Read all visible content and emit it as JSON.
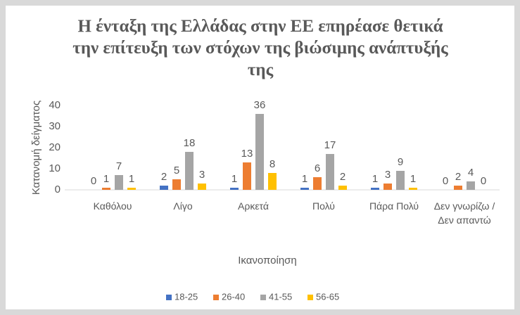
{
  "chart_data": {
    "type": "bar",
    "title": "Η ένταξη της Ελλάδας στην ΕΕ επηρέασε θετικά την επίτευξη των στόχων της βιώσιμης ανάπτυξής της",
    "x_label": "Ικανοποίηση",
    "y_label": "Κατανομή δείγματος",
    "categories": [
      "Καθόλου",
      "Λίγο",
      "Αρκετά",
      "Πολύ",
      "Πάρα Πολύ",
      "Δεν γνωρίζω / Δεν απαντώ"
    ],
    "series": [
      {
        "name": "18-25",
        "color": "#4472c4",
        "values": [
          0,
          2,
          1,
          1,
          1,
          0
        ]
      },
      {
        "name": "26-40",
        "color": "#ed7d31",
        "values": [
          1,
          5,
          13,
          6,
          3,
          2
        ]
      },
      {
        "name": "41-55",
        "color": "#a5a5a5",
        "values": [
          7,
          18,
          36,
          17,
          9,
          4
        ]
      },
      {
        "name": "56-65",
        "color": "#ffc000",
        "values": [
          1,
          3,
          8,
          2,
          1,
          0
        ]
      }
    ],
    "ylim": [
      0,
      40
    ],
    "yticks": [
      0,
      10,
      20,
      30,
      40
    ],
    "grid": false,
    "legend": "bottom"
  }
}
